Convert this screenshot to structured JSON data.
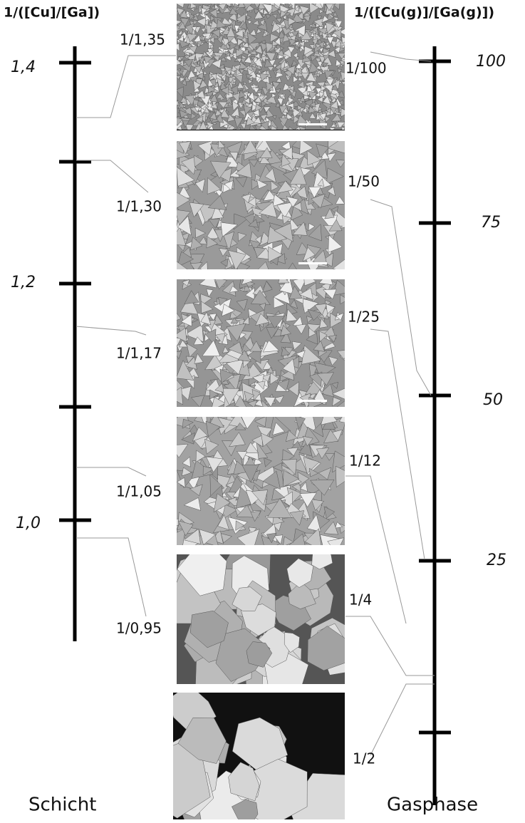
{
  "left_axis": {
    "title": "1/([Cu]/[Ga])",
    "tick_labels": [
      "1,4",
      "1,2",
      "1,0"
    ],
    "caption": "Schicht"
  },
  "right_axis": {
    "title": "1/([Cu(g)]/[Ga(g)])",
    "tick_labels": [
      "100",
      "75",
      "50",
      "25"
    ],
    "caption": "Gasphase"
  },
  "images": [
    {
      "left_label": "1/1,35",
      "right_label": "1/100"
    },
    {
      "left_label": "1/1,30",
      "right_label": "1/50"
    },
    {
      "left_label": "1/1,17",
      "right_label": "1/25"
    },
    {
      "left_label": "1/1,05",
      "right_label": "1/12"
    },
    {
      "left_label": "1/0,95",
      "right_label": "1/4"
    },
    {
      "left_label": null,
      "right_label": "1/2"
    }
  ]
}
